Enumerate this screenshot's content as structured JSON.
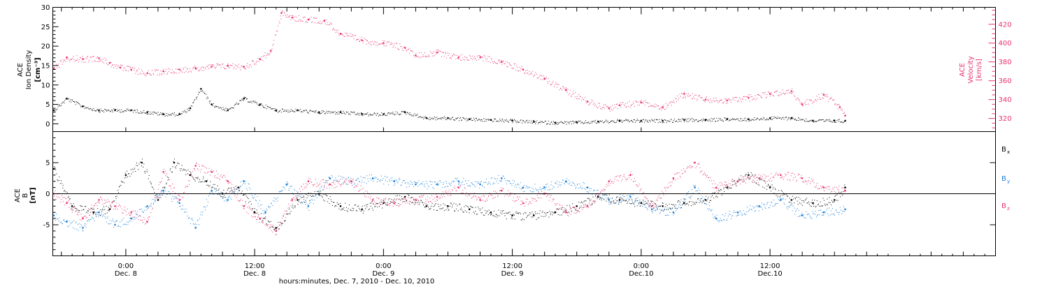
{
  "chart_data": [
    {
      "type": "scatter",
      "panel": "top",
      "ylabel_lines": [
        "ACE",
        "Ion Density",
        "[cm⁻³]"
      ],
      "ylim": [
        -2,
        30
      ],
      "yticks": [
        0,
        5,
        10,
        15,
        20,
        25,
        30
      ],
      "ylabel_right_lines": [
        "ACE",
        "Velocity",
        "[km/s]"
      ],
      "ylim_right": [
        306,
        438
      ],
      "yticks_right": [
        320,
        340,
        360,
        380,
        400,
        420
      ],
      "series": [
        {
          "role": "density",
          "axis": "left",
          "color": "#000000",
          "x": [
            -6.7,
            -5.5,
            -4.0,
            -2.5,
            -1.0,
            0.5,
            2.0,
            3.5,
            5.0,
            6.0,
            7.0,
            8.0,
            9.5,
            11.0,
            12.5,
            14.0,
            16.0,
            18.0,
            20.0,
            22.0,
            24.0,
            26.0,
            28.0,
            30.0,
            32.0,
            34.0,
            36.0,
            38.0,
            40.0,
            42.0,
            44.0,
            46.0,
            48.0,
            50.0,
            52.0,
            54.0,
            56.0,
            58.0,
            60.0,
            62.0,
            64.0,
            66.0,
            67.0
          ],
          "y": [
            3.5,
            6.5,
            4.5,
            3.5,
            3.5,
            3.5,
            3.0,
            2.5,
            2.5,
            4.0,
            9.0,
            5.0,
            3.5,
            6.5,
            5.0,
            3.5,
            3.5,
            3.0,
            3.0,
            2.5,
            2.5,
            3.0,
            1.5,
            1.5,
            1.2,
            1.0,
            0.8,
            0.5,
            0.3,
            0.4,
            0.6,
            0.8,
            0.8,
            0.8,
            1.0,
            1.0,
            1.2,
            1.2,
            1.5,
            1.5,
            0.8,
            0.8,
            0.8
          ]
        },
        {
          "role": "velocity",
          "axis": "right",
          "color": "#e8336d",
          "x": [
            -6.7,
            -5.5,
            -4.0,
            -2.5,
            -1.5,
            -0.5,
            0.5,
            2.0,
            3.5,
            5.0,
            6.5,
            8.0,
            9.5,
            11.0,
            12.5,
            13.5,
            14.5,
            15.5,
            17.0,
            18.5,
            20.0,
            22.0,
            24.0,
            26.0,
            27.0,
            29.0,
            31.0,
            33.0,
            35.0,
            37.0,
            39.0,
            41.0,
            43.0,
            45.0,
            46.0,
            48.0,
            50.0,
            52.0,
            54.0,
            56.0,
            58.0,
            60.0,
            62.0,
            63.0,
            65.0,
            66.5,
            67.0
          ],
          "y": [
            373,
            385,
            383,
            384,
            379,
            374,
            372,
            368,
            370,
            372,
            373,
            375,
            376,
            375,
            383,
            392,
            432,
            427,
            425,
            424,
            410,
            403,
            400,
            395,
            387,
            390,
            385,
            385,
            380,
            372,
            362,
            350,
            338,
            331,
            334,
            337,
            332,
            346,
            340,
            339,
            342,
            346,
            349,
            335,
            345,
            332,
            323
          ]
        }
      ]
    },
    {
      "type": "scatter",
      "panel": "bottom",
      "ylabel_lines": [
        "ACE",
        "B",
        "[nT]"
      ],
      "ylim": [
        -10,
        10
      ],
      "yticks": [
        -5,
        0,
        5
      ],
      "xlabel": "hours:minutes, Dec.  7, 2010 - Dec. 10, 2010",
      "xlim": [
        -6.8,
        81
      ],
      "xticks": [
        0,
        12,
        24,
        36,
        48,
        60
      ],
      "xtick_labels": [
        [
          "0:00",
          "Dec. 8"
        ],
        [
          "12:00",
          "Dec. 8"
        ],
        [
          "0:00",
          "Dec. 9"
        ],
        [
          "12:00",
          "Dec. 9"
        ],
        [
          "0:00",
          "Dec.10"
        ],
        [
          "12:00",
          "Dec.10"
        ]
      ],
      "legend": [
        {
          "base": "B",
          "sub": "x",
          "color": "#000000"
        },
        {
          "base": "B",
          "sub": "y",
          "color": "#1a7fd6"
        },
        {
          "base": "B",
          "sub": "z",
          "color": "#e8336d"
        }
      ],
      "series": [
        {
          "role": "Bx",
          "color": "#000000",
          "x": [
            -6.7,
            -5.0,
            -3.0,
            -1.5,
            0.0,
            1.5,
            3.0,
            4.5,
            6.0,
            7.5,
            9.0,
            10.5,
            12.0,
            14.0,
            16.0,
            18.0,
            20.0,
            22.0,
            24.0,
            26.0,
            28.0,
            30.0,
            32.0,
            34.0,
            36.0,
            38.0,
            40.0,
            42.0,
            44.0,
            46.0,
            48.0,
            50.0,
            52.0,
            54.0,
            56.0,
            58.0,
            60.0,
            62.0,
            64.0,
            66.0,
            67.0
          ],
          "y": [
            4.0,
            -2.0,
            -3.0,
            -2.5,
            3.0,
            5.0,
            -1.0,
            5.0,
            3.0,
            2.0,
            0.0,
            1.0,
            -3.0,
            -5.5,
            -1.0,
            0.0,
            -2.0,
            -2.5,
            -1.5,
            -0.5,
            -2.0,
            -2.0,
            -2.5,
            -3.0,
            -3.5,
            -3.5,
            -3.0,
            -2.0,
            -0.5,
            -1.0,
            -1.5,
            -2.0,
            -1.5,
            -1.0,
            1.0,
            3.0,
            1.0,
            -1.0,
            -1.5,
            -1.0,
            1.0
          ]
        },
        {
          "role": "By",
          "color": "#1a7fd6",
          "x": [
            -6.7,
            -5.5,
            -4.0,
            -2.5,
            -1.0,
            0.5,
            2.0,
            3.5,
            5.0,
            6.5,
            8.0,
            9.5,
            11.0,
            13.0,
            15.0,
            17.0,
            19.0,
            21.0,
            23.0,
            25.0,
            27.0,
            29.0,
            31.0,
            33.0,
            35.0,
            37.0,
            39.0,
            41.0,
            43.0,
            45.0,
            47.0,
            49.0,
            51.0,
            53.0,
            55.0,
            57.0,
            59.0,
            61.0,
            63.0,
            65.0,
            67.0
          ],
          "y": [
            -3.5,
            -4.5,
            -5.5,
            -3.0,
            -5.0,
            -4.0,
            -2.0,
            0.5,
            -1.5,
            -5.5,
            0.5,
            -1.0,
            2.0,
            -3.0,
            1.5,
            -2.0,
            2.5,
            2.0,
            2.5,
            2.0,
            1.5,
            1.5,
            2.0,
            1.5,
            2.5,
            1.0,
            1.0,
            2.0,
            1.0,
            -1.0,
            -0.5,
            -2.5,
            -3.0,
            1.0,
            -4.0,
            -3.0,
            -2.0,
            -1.0,
            -3.5,
            -3.0,
            -2.5
          ]
        },
        {
          "role": "Bz",
          "color": "#e8336d",
          "x": [
            -6.7,
            -5.5,
            -4.0,
            -2.5,
            -1.0,
            0.5,
            2.0,
            3.5,
            5.0,
            6.5,
            8.0,
            9.5,
            11.0,
            12.5,
            14.0,
            15.5,
            17.0,
            19.0,
            21.0,
            23.0,
            25.0,
            27.0,
            29.0,
            31.0,
            33.0,
            35.0,
            37.0,
            39.0,
            41.0,
            43.0,
            45.0,
            47.0,
            49.0,
            51.0,
            53.0,
            55.0,
            57.0,
            59.0,
            61.0,
            63.0,
            65.0,
            67.0
          ],
          "y": [
            0.0,
            -1.5,
            -4.0,
            -1.0,
            -2.0,
            -3.0,
            -4.5,
            3.5,
            -1.0,
            4.5,
            3.5,
            2.0,
            -2.0,
            -4.0,
            -6.0,
            -1.0,
            2.0,
            1.5,
            2.0,
            -1.0,
            -1.5,
            -1.0,
            -0.5,
            1.0,
            -1.0,
            0.5,
            -1.5,
            0.0,
            -3.0,
            -2.0,
            2.0,
            3.0,
            -2.0,
            2.5,
            5.0,
            1.0,
            2.0,
            2.5,
            3.0,
            2.5,
            1.0,
            0.5
          ]
        }
      ]
    }
  ]
}
